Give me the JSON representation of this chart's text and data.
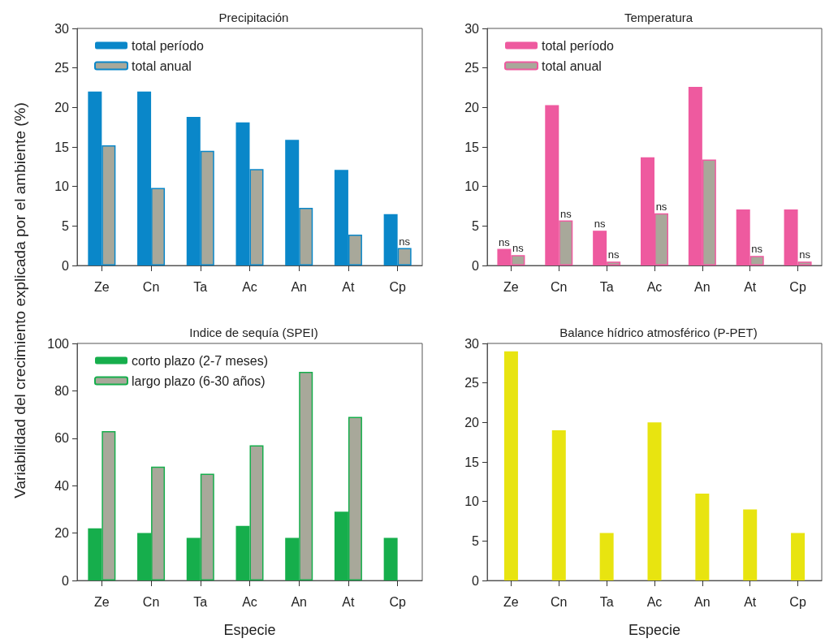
{
  "chart_data": [
    {
      "type": "bar",
      "title": "Precipitación",
      "ylabel": "Variabilidad del crecimiento explicada por el ambiente (%)",
      "categories": [
        "Ze",
        "Cn",
        "Ta",
        "Ac",
        "An",
        "At",
        "Cp"
      ],
      "series": [
        {
          "name": "total período",
          "color": "#0a87c9",
          "values": [
            22,
            22,
            18.8,
            18.1,
            15.9,
            12.1,
            6.5
          ]
        },
        {
          "name": "total anual",
          "color": "#a8a89a",
          "values": [
            15.2,
            9.8,
            14.5,
            12.2,
            7.3,
            3.9,
            2.2
          ]
        }
      ],
      "annotations": [
        {
          "text": "ns",
          "x": "Cp",
          "y": 2.2
        }
      ],
      "ylim": [
        0,
        30
      ],
      "yticks": [
        0,
        5,
        10,
        15,
        20,
        25,
        30
      ],
      "legend": "top left"
    },
    {
      "type": "bar",
      "title": "Temperatura",
      "categories": [
        "Ze",
        "Cn",
        "Ta",
        "Ac",
        "An",
        "At",
        "Cp"
      ],
      "series": [
        {
          "name": "total período",
          "color": "#ee5a9f",
          "values": [
            2.1,
            20.3,
            4.4,
            13.7,
            22.6,
            7.1,
            7.1
          ]
        },
        {
          "name": "total anual",
          "color": "#a8a89a",
          "values": [
            1.3,
            5.7,
            0.5,
            6.6,
            13.4,
            1.2,
            0.5
          ]
        }
      ],
      "annotations": [
        {
          "text": "ns",
          "x": "Ze",
          "y": 2.1
        },
        {
          "text": "ns",
          "x": "Ze",
          "y": 1.3
        },
        {
          "text": "ns",
          "x": "Cn",
          "y": 5.7
        },
        {
          "text": "ns",
          "x": "Ta",
          "y": 4.4
        },
        {
          "text": "ns",
          "x": "Ta",
          "y": 0.5
        },
        {
          "text": "ns",
          "x": "Ac",
          "y": 6.6
        },
        {
          "text": "ns",
          "x": "At",
          "y": 1.2
        },
        {
          "text": "ns",
          "x": "Cp",
          "y": 0.5
        }
      ],
      "ylim": [
        0,
        30
      ],
      "yticks": [
        0,
        5,
        10,
        15,
        20,
        25,
        30
      ],
      "legend": "top left"
    },
    {
      "type": "bar",
      "title": "Indice de sequía (SPEI)",
      "xlabel": "Especie",
      "categories": [
        "Ze",
        "Cn",
        "Ta",
        "Ac",
        "An",
        "At",
        "Cp"
      ],
      "series": [
        {
          "name": "corto plazo (2-7 meses)",
          "color": "#16ae4c",
          "values": [
            22,
            20,
            18,
            23,
            18,
            29,
            18
          ]
        },
        {
          "name": "largo plazo (6-30 años)",
          "color": "#a8a89a",
          "values": [
            63,
            48,
            45,
            57,
            88,
            69,
            null
          ]
        }
      ],
      "ylim": [
        0,
        100
      ],
      "yticks": [
        0,
        20,
        40,
        60,
        80,
        100
      ],
      "legend": "top left"
    },
    {
      "type": "bar",
      "title": "Balance hídrico atmosférico (P-PET)",
      "xlabel": "Especie",
      "categories": [
        "Ze",
        "Cn",
        "Ta",
        "Ac",
        "An",
        "At",
        "Cp"
      ],
      "series": [
        {
          "color": "#e8e410",
          "values": [
            29,
            19,
            6,
            20,
            11,
            9,
            6
          ]
        }
      ],
      "ylim": [
        0,
        30
      ],
      "yticks": [
        0,
        5,
        10,
        15,
        20,
        25,
        30
      ]
    }
  ]
}
